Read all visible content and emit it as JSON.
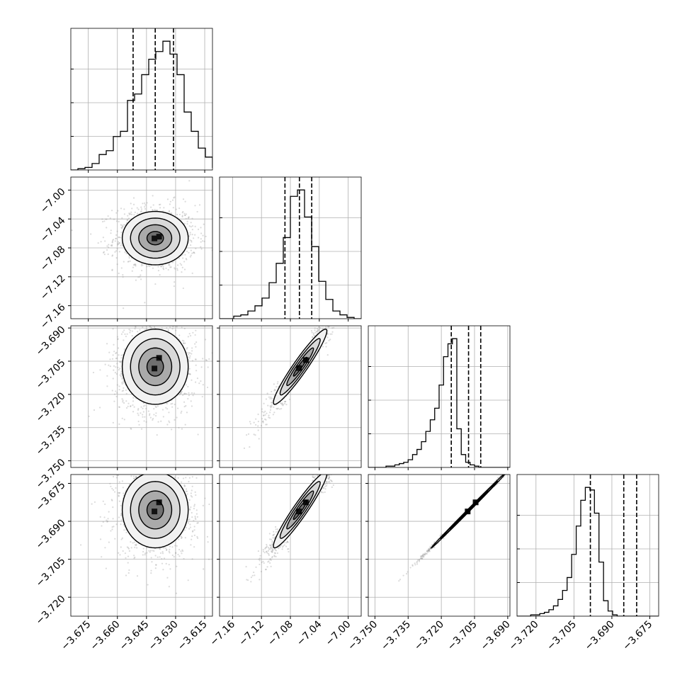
{
  "chart_data": {
    "type": "corner",
    "parameters": [
      {
        "ticks": [
          -3.675,
          -3.66,
          -3.645,
          -3.63,
          -3.615
        ],
        "tick_labels": [
          "−3.675",
          "−3.660",
          "−3.645",
          "−3.630",
          "−3.615"
        ],
        "range": [
          -3.684,
          -3.611
        ],
        "quantiles": [
          -3.6519,
          -3.6405,
          -3.6311
        ],
        "hist_peak": 1.0,
        "hist": {
          "edges_start": -3.684,
          "bin_width": 0.00365,
          "heights": [
            0.0,
            0.01,
            0.02,
            0.05,
            0.12,
            0.15,
            0.26,
            0.3,
            0.54,
            0.59,
            0.74,
            0.86,
            0.92,
            1.0,
            0.9,
            0.74,
            0.45,
            0.3,
            0.17,
            0.1,
            0.02,
            0.0
          ]
        }
      },
      {
        "ticks": [
          -7.16,
          -7.12,
          -7.08,
          -7.04,
          -7.0
        ],
        "tick_labels": [
          "−7.16",
          "−7.12",
          "−7.08",
          "−7.04",
          "−7.00"
        ],
        "range": [
          -7.178,
          -6.982
        ],
        "quantiles": [
          -7.0875,
          -7.0675,
          -7.0505
        ],
        "hist_peak": 1.0,
        "hist": {
          "edges_start": -7.178,
          "bin_width": 0.0098,
          "heights": [
            0.0,
            0.0,
            0.02,
            0.03,
            0.06,
            0.1,
            0.16,
            0.28,
            0.43,
            0.63,
            0.95,
            1.0,
            0.79,
            0.56,
            0.29,
            0.15,
            0.06,
            0.03,
            0.01,
            0.0
          ]
        }
      },
      {
        "ticks": [
          -3.75,
          -3.735,
          -3.72,
          -3.705,
          -3.69
        ],
        "tick_labels": [
          "−3.750",
          "−3.735",
          "−3.720",
          "−3.705",
          "−3.690"
        ],
        "range": [
          -3.753,
          -3.689
        ],
        "quantiles": [
          -3.7155,
          -3.7077,
          -3.7022
        ],
        "hist_peak": 1.0,
        "hist": {
          "edges_start": -3.753,
          "bin_width": 0.002,
          "heights": [
            0.0,
            0.0,
            0.0,
            0.0,
            0.01,
            0.01,
            0.02,
            0.03,
            0.04,
            0.06,
            0.1,
            0.14,
            0.2,
            0.28,
            0.37,
            0.46,
            0.64,
            0.86,
            0.96,
            1.0,
            0.3,
            0.1,
            0.04,
            0.02,
            0.01,
            0.0,
            0.0,
            0.0,
            0.0,
            0.0,
            0.0,
            0.0
          ]
        }
      },
      {
        "ticks": [
          -3.72,
          -3.705,
          -3.69,
          -3.675
        ],
        "tick_labels": [
          "−3.720",
          "−3.705",
          "−3.690",
          "−3.675"
        ],
        "range": [
          -3.7275,
          -3.6715
        ],
        "quantiles": [
          -3.6985,
          -3.6853,
          -3.6802
        ],
        "hist_peak": 1.0,
        "hist": {
          "edges_start": -3.7275,
          "bin_width": 0.0018,
          "heights": [
            0.0,
            0.0,
            0.0,
            0.01,
            0.01,
            0.02,
            0.03,
            0.05,
            0.08,
            0.13,
            0.2,
            0.3,
            0.48,
            0.7,
            0.9,
            1.0,
            0.98,
            0.8,
            0.42,
            0.12,
            0.04,
            0.01,
            0.0,
            0.0,
            0.0,
            0.0,
            0.0,
            0.0,
            0.0,
            0.0,
            0.0
          ]
        }
      }
    ],
    "pairs": [
      {
        "row": 1,
        "col": 0,
        "center": [
          -3.6405,
          -7.0665
        ],
        "sigma": [
          0.0085,
          0.0185
        ],
        "rho": 0.0,
        "peak_offset": [
          0.002,
          0.002
        ]
      },
      {
        "row": 2,
        "col": 0,
        "center": [
          -3.6405,
          -3.7075
        ],
        "sigma": [
          0.0085,
          0.0085
        ],
        "rho": 0.0,
        "peak_offset": [
          0.002,
          0.004
        ]
      },
      {
        "row": 2,
        "col": 1,
        "center": [
          -7.0665,
          -3.7075
        ],
        "sigma": [
          0.0185,
          0.0085
        ],
        "rho": 0.95,
        "peak_offset": [
          0.008,
          0.003
        ]
      },
      {
        "row": 3,
        "col": 0,
        "center": [
          -3.6405,
          -3.6855
        ],
        "sigma": [
          0.0085,
          0.0075
        ],
        "rho": 0.0,
        "peak_offset": [
          0.002,
          0.003
        ]
      },
      {
        "row": 3,
        "col": 1,
        "center": [
          -7.0665,
          -3.6855
        ],
        "sigma": [
          0.0185,
          0.0075
        ],
        "rho": 0.95,
        "peak_offset": [
          0.008,
          0.003
        ]
      },
      {
        "row": 3,
        "col": 2,
        "center": [
          -3.7075,
          -3.6855
        ],
        "sigma": [
          0.0085,
          0.0075
        ],
        "rho": 0.999,
        "peak_offset": [
          0.003,
          0.003
        ]
      }
    ],
    "contour_levels_sigma": [
      0.5,
      1.0,
      1.5,
      2.0
    ],
    "grid": true,
    "legend": "none",
    "title": "",
    "xlabel": "",
    "ylabel": ""
  }
}
